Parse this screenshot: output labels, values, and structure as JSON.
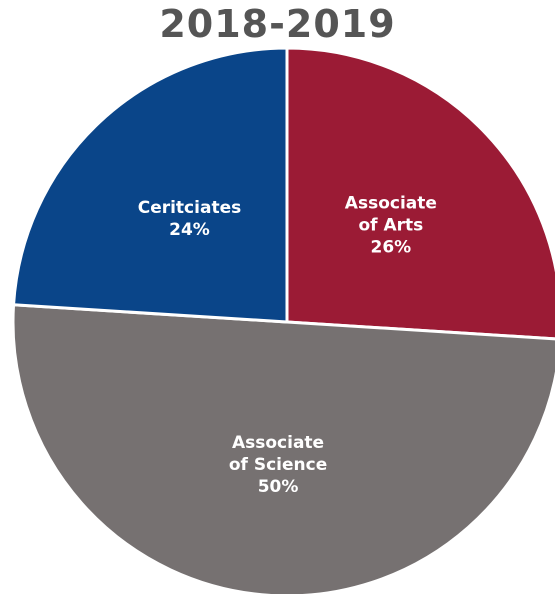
{
  "chart_data": {
    "type": "pie",
    "title": "2018-2019",
    "slices": [
      {
        "label_lines": [
          "Associate",
          "of Arts"
        ],
        "value": 26,
        "value_label": "26%",
        "color": "#9b1b35"
      },
      {
        "label_lines": [
          "Associate",
          "of Science"
        ],
        "value": 50,
        "value_label": "50%",
        "color": "#767171"
      },
      {
        "label_lines": [
          "Ceritciates"
        ],
        "value": 24,
        "value_label": "24%",
        "color": "#0a4589"
      }
    ],
    "start_angle_deg": 0,
    "direction": "clockwise",
    "legend": "none"
  }
}
